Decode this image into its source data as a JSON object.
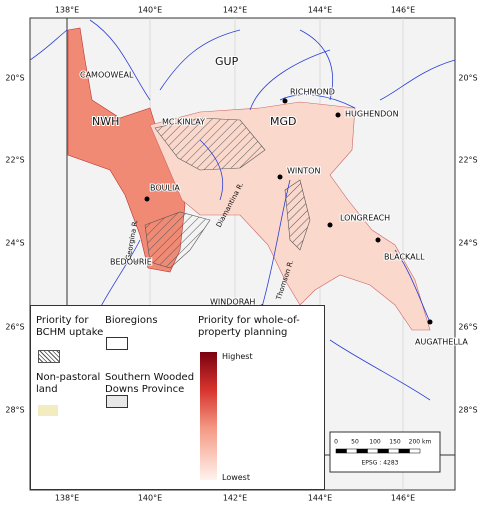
{
  "map": {
    "x_ticks": [
      "138°E",
      "140°E",
      "142°E",
      "144°E",
      "146°E"
    ],
    "y_ticks": [
      "20°S",
      "22°S",
      "24°S",
      "26°S",
      "28°S"
    ],
    "places": [
      "CAMOOWEAL",
      "NWH",
      "MC KINLAY",
      "GUP",
      "MGD",
      "RICHMOND",
      "HUGHENDON",
      "WINTON",
      "BOULIA",
      "LONGREACH",
      "BLACKALL",
      "BEDOURIE",
      "WINDORAH",
      "AUGATHELLA"
    ],
    "rivers": [
      "Georgina R.",
      "Diamantina R.",
      "Thomson R."
    ]
  },
  "legend": {
    "bchm": "Priority for BCHM uptake",
    "non_pastoral": "Non-pastoral land",
    "bioregions": "Bioregions",
    "province": "Southern Wooded Downs Province",
    "planning": "Priority for whole-of-property planning",
    "highest": "Highest",
    "lowest": "Lowest"
  },
  "scale_bar": {
    "labels": [
      "0",
      "50",
      "100",
      "150",
      "200 km"
    ],
    "epsg": "EPSG : 4283"
  }
}
